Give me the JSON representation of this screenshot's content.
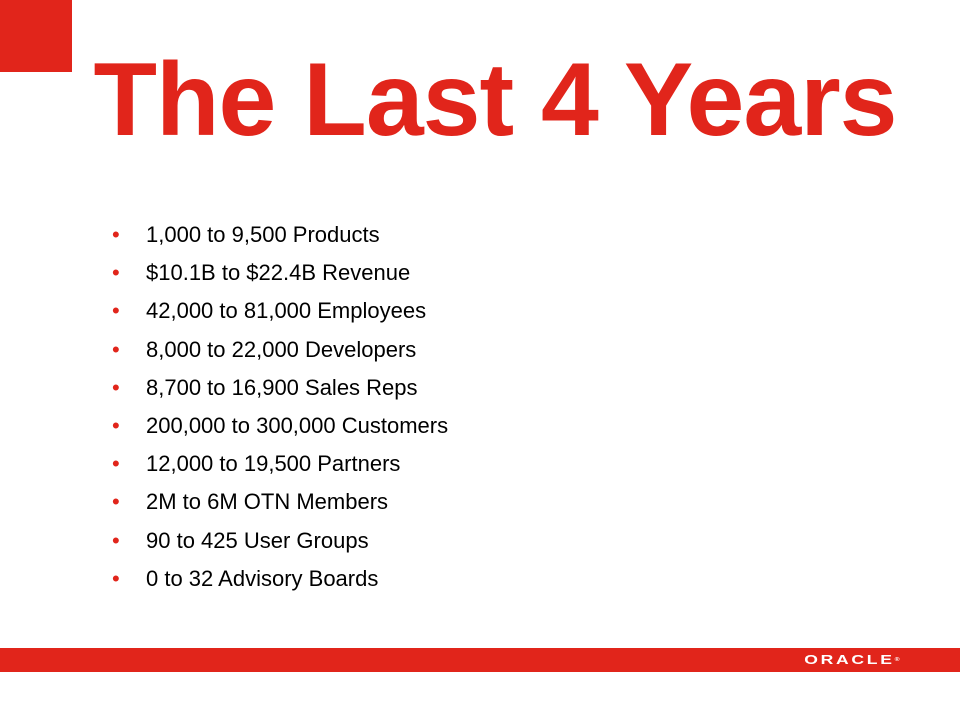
{
  "colors": {
    "brand_red": "#e1251b",
    "text": "#000000"
  },
  "slide": {
    "title": "The Last 4 Years",
    "bullet_glyph": "•",
    "bullets": [
      "1,000 to 9,500 Products",
      "$10.1B to $22.4B Revenue",
      "42,000 to 81,000 Employees",
      "8,000 to 22,000 Developers",
      "8,700 to 16,900 Sales Reps",
      "200,000 to 300,000 Customers",
      "12,000 to 19,500 Partners",
      "2M to 6M OTN Members",
      "90 to 425 User Groups",
      "0 to 32 Advisory Boards"
    ]
  },
  "footer": {
    "logo_text": "ORACLE",
    "logo_mark": "®"
  }
}
